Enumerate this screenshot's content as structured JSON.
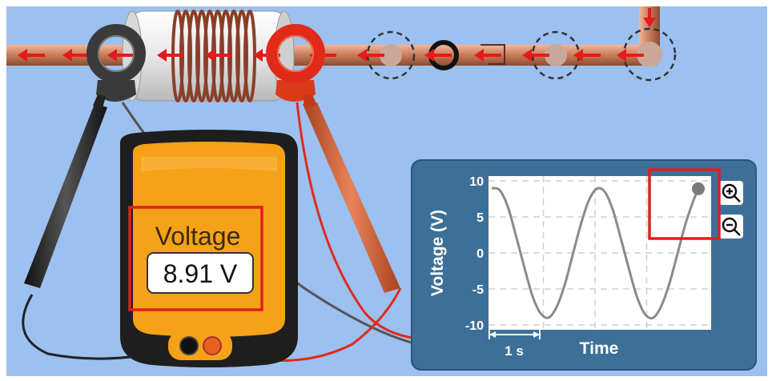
{
  "meter": {
    "label": "Voltage",
    "reading": "8.91 V"
  },
  "chart_panel": {
    "zoom_in_icon": "magnifier-plus-icon",
    "zoom_out_icon": "magnifier-minus-icon",
    "scale_bar_label": "1 s"
  },
  "colors": {
    "background": "#9cc0f0",
    "panel": "#3d7099",
    "meter_body": "#1e1e1e",
    "meter_face": "#f5a219",
    "highlight_box": "#e0201c",
    "wave": "#8a8a8a",
    "pipe": "#c77a57",
    "arrow": "#e51b1b",
    "red_lead": "#e02a1a",
    "black_lead": "#222222"
  },
  "chart_data": {
    "type": "line",
    "xlabel": "Time",
    "ylabel": "Voltage (V)",
    "ylim": [
      -10,
      10
    ],
    "yticks": [
      "10",
      "5",
      "0",
      "-5",
      "-10"
    ],
    "grid": true,
    "x_unit": "s",
    "x": [
      0,
      0.25,
      0.5,
      0.75,
      1.0,
      1.25,
      1.5,
      1.75,
      2.0,
      2.25,
      2.5,
      2.75,
      3.0,
      3.25,
      3.5,
      3.75,
      4.0,
      4.25,
      4.5,
      4.75,
      5.0,
      5.25,
      5.5,
      5.75,
      6.0,
      6.25,
      6.4
    ],
    "series": [
      {
        "values": [
          9.0,
          8.7,
          6.4,
          2.4,
          -1.8,
          -5.8,
          -8.3,
          -9.0,
          -7.6,
          -4.6,
          -0.4,
          3.8,
          7.2,
          8.9,
          8.5,
          6.0,
          2.0,
          -2.2,
          -6.1,
          -8.5,
          -9.0,
          -7.4,
          -4.3,
          -0.2,
          4.0,
          7.3,
          8.91
        ]
      }
    ],
    "cursor": {
      "x": 6.4,
      "y": 8.91
    }
  }
}
